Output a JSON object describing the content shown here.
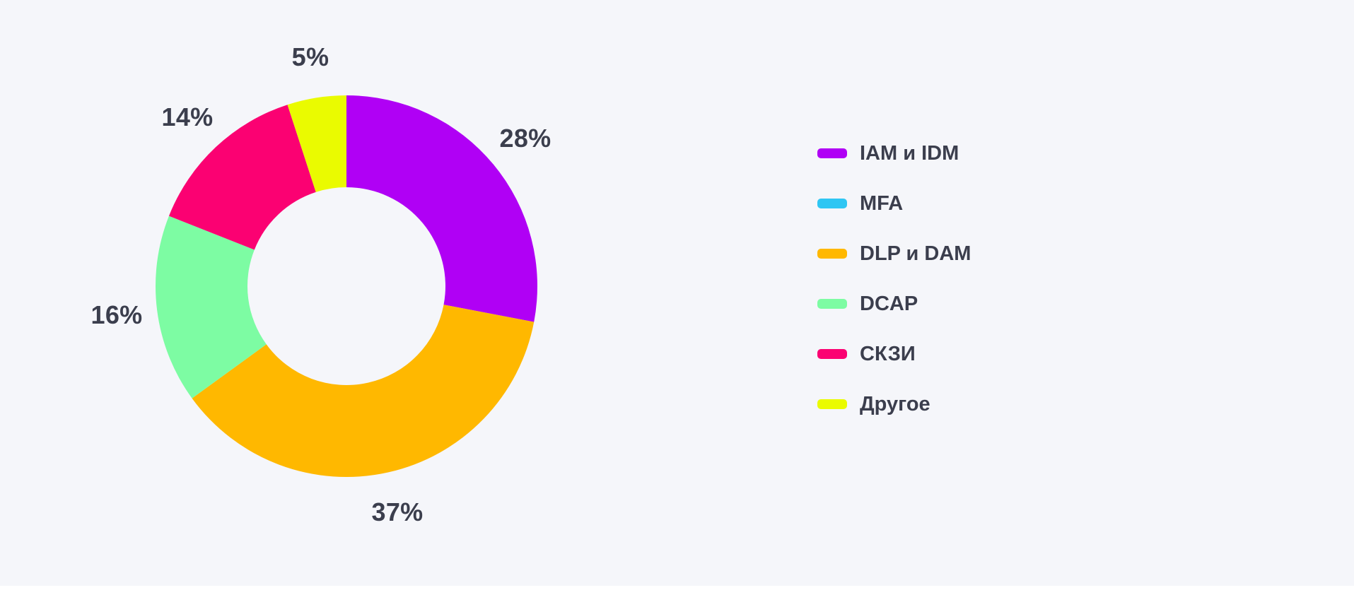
{
  "colors": {
    "background": "#F5F6FA",
    "text": "#3B3E4D",
    "bottom_strip": "#FFFFFF"
  },
  "chart_data": {
    "type": "pie",
    "subtype": "donut",
    "title": "",
    "units": "%",
    "direction": "clockwise",
    "start_angle_deg": 0,
    "donut_hole_ratio": 0.52,
    "legend_position": "right",
    "series": [
      {
        "label": "IAM и IDM",
        "value": 28,
        "percent_label": "28%",
        "color": "#B000F5"
      },
      {
        "label": "MFA",
        "value": 0,
        "percent_label": "",
        "color": "#2FC6F3"
      },
      {
        "label": "DLP и DAM",
        "value": 37,
        "percent_label": "37%",
        "color": "#FFB800"
      },
      {
        "label": "DCAP",
        "value": 16,
        "percent_label": "16%",
        "color": "#7DFCA3"
      },
      {
        "label": "СКЗИ",
        "value": 14,
        "percent_label": "14%",
        "color": "#FB0172"
      },
      {
        "label": "Другое",
        "value": 5,
        "percent_label": "5%",
        "color": "#EAFB00"
      }
    ]
  }
}
